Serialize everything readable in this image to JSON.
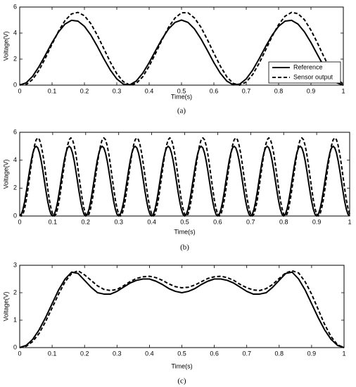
{
  "chart_data": [
    {
      "type": "line",
      "caption": "(a)",
      "xlabel": "Time(s)",
      "ylabel": "Voltage(V)",
      "legend": "lower right",
      "xlim": [
        0,
        1
      ],
      "ylim": [
        0,
        6
      ],
      "xticks": [
        0,
        0.1,
        0.2,
        0.3,
        0.4,
        0.5,
        0.6,
        0.7,
        0.8,
        0.9,
        1
      ],
      "yticks": [
        0,
        2,
        4,
        6
      ],
      "x": [
        0,
        0.02,
        0.04,
        0.06,
        0.08,
        0.1,
        0.12,
        0.14,
        0.16,
        0.18,
        0.2,
        0.22,
        0.24,
        0.26,
        0.28,
        0.3,
        0.32,
        0.34,
        0.36,
        0.38,
        0.4,
        0.42,
        0.44,
        0.46,
        0.48,
        0.5,
        0.52,
        0.54,
        0.56,
        0.58,
        0.6,
        0.62,
        0.64,
        0.66,
        0.68,
        0.7,
        0.72,
        0.74,
        0.76,
        0.78,
        0.8,
        0.82,
        0.84,
        0.86,
        0.88,
        0.9,
        0.92,
        0.94,
        0.96,
        0.98,
        1
      ],
      "series": [
        {
          "name": "Reference",
          "color": "#000000",
          "linestyle": "solid",
          "values": [
            0,
            0.18,
            0.68,
            1.44,
            2.34,
            3.27,
            4.09,
            4.69,
            4.98,
            4.92,
            4.52,
            3.84,
            2.97,
            2.03,
            1.16,
            0.48,
            0.08,
            0.02,
            0.31,
            0.91,
            1.73,
            2.66,
            3.56,
            4.32,
            4.82,
            5,
            4.82,
            4.32,
            3.56,
            2.66,
            1.73,
            0.91,
            0.31,
            0.02,
            0.08,
            0.48,
            1.16,
            2.03,
            2.97,
            3.84,
            4.52,
            4.92,
            4.98,
            4.69,
            4.09,
            3.27,
            2.34,
            1.44,
            0.68,
            0.18,
            0
          ]
        },
        {
          "name": "Sensor output",
          "color": "#000000",
          "linestyle": "dashed",
          "values": [
            0.04,
            0.04,
            0.44,
            1.15,
            2.11,
            3.15,
            4.14,
            4.96,
            5.47,
            5.59,
            5.33,
            4.72,
            3.83,
            2.8,
            1.77,
            0.88,
            0.27,
            0.01,
            0.13,
            0.64,
            1.46,
            2.45,
            3.49,
            4.45,
            5.16,
            5.56,
            5.56,
            5.16,
            4.45,
            3.49,
            2.45,
            1.46,
            0.64,
            0.13,
            0,
            0.24,
            0.82,
            1.69,
            2.71,
            3.75,
            4.65,
            5.3,
            5.59,
            5.49,
            5.02,
            4.22,
            3.24,
            2.18,
            1.22,
            0.48,
            0.07
          ]
        }
      ]
    },
    {
      "type": "line",
      "caption": "(b)",
      "xlabel": "Time(s)",
      "ylabel": "Voltage(V)",
      "xlim": [
        0,
        1
      ],
      "ylim": [
        0,
        6
      ],
      "xticks": [
        0,
        0.1,
        0.2,
        0.3,
        0.4,
        0.5,
        0.6,
        0.7,
        0.8,
        0.9,
        1
      ],
      "yticks": [
        0,
        2,
        4,
        6
      ],
      "x": [
        0,
        0.005,
        0.01,
        0.015,
        0.02,
        0.025,
        0.03,
        0.035,
        0.04,
        0.045,
        0.05,
        0.055,
        0.06,
        0.065,
        0.07,
        0.075,
        0.08,
        0.085,
        0.09,
        0.095,
        0.1,
        0.105,
        0.11,
        0.115,
        0.12,
        0.125,
        0.13,
        0.135,
        0.14,
        0.145,
        0.15,
        0.155,
        0.16,
        0.165,
        0.17,
        0.175,
        0.18,
        0.185,
        0.19,
        0.195,
        0.2,
        0.205,
        0.21,
        0.215,
        0.22,
        0.225,
        0.23,
        0.235,
        0.24,
        0.245,
        0.25,
        0.255,
        0.26,
        0.265,
        0.27,
        0.275,
        0.28,
        0.285,
        0.29,
        0.295,
        0.3,
        0.305,
        0.31,
        0.315,
        0.32,
        0.325,
        0.33,
        0.335,
        0.34,
        0.345,
        0.35,
        0.355,
        0.36,
        0.365,
        0.37,
        0.375,
        0.38,
        0.385,
        0.39,
        0.395,
        0.4,
        0.405,
        0.41,
        0.415,
        0.42,
        0.425,
        0.43,
        0.435,
        0.44,
        0.445,
        0.45,
        0.455,
        0.46,
        0.465,
        0.47,
        0.475,
        0.48,
        0.485,
        0.49,
        0.495,
        0.5,
        0.505,
        0.51,
        0.515,
        0.52,
        0.525,
        0.53,
        0.535,
        0.54,
        0.545,
        0.55,
        0.555,
        0.56,
        0.565,
        0.57,
        0.575,
        0.58,
        0.585,
        0.59,
        0.595,
        0.6,
        0.605,
        0.61,
        0.615,
        0.62,
        0.625,
        0.63,
        0.635,
        0.64,
        0.645,
        0.65,
        0.655,
        0.66,
        0.665,
        0.67,
        0.675,
        0.68,
        0.685,
        0.69,
        0.695,
        0.7,
        0.705,
        0.71,
        0.715,
        0.72,
        0.725,
        0.73,
        0.735,
        0.74,
        0.745,
        0.75,
        0.755,
        0.76,
        0.765,
        0.77,
        0.775,
        0.78,
        0.785,
        0.79,
        0.795,
        0.8,
        0.805,
        0.81,
        0.815,
        0.82,
        0.825,
        0.83,
        0.835,
        0.84,
        0.845,
        0.85,
        0.855,
        0.86,
        0.865,
        0.87,
        0.875,
        0.88,
        0.885,
        0.89,
        0.895,
        0.9,
        0.905,
        0.91,
        0.915,
        0.92,
        0.925,
        0.93,
        0.935,
        0.94,
        0.945,
        0.95,
        0.955,
        0.96,
        0.965,
        0.97,
        0.975,
        0.98,
        0.985,
        0.99,
        0.995,
        1
      ],
      "series": [
        {
          "color": "#000000",
          "linestyle": "solid",
          "values": [
            0,
            0.12,
            0.48,
            1.03,
            1.73,
            2.5,
            3.27,
            3.97,
            4.52,
            4.88,
            5,
            4.88,
            4.52,
            3.97,
            3.27,
            2.5,
            1.73,
            1.03,
            0.48,
            0.12,
            0,
            0.12,
            0.48,
            1.03,
            1.73,
            2.5,
            3.27,
            3.97,
            4.52,
            4.88,
            5,
            4.88,
            4.52,
            3.97,
            3.27,
            2.5,
            1.73,
            1.03,
            0.48,
            0.12,
            0,
            0.12,
            0.48,
            1.03,
            1.73,
            2.5,
            3.27,
            3.97,
            4.52,
            4.88,
            5,
            4.88,
            4.52,
            3.97,
            3.27,
            2.5,
            1.73,
            1.03,
            0.48,
            0.12,
            0,
            0.12,
            0.48,
            1.03,
            1.73,
            2.5,
            3.27,
            3.97,
            4.52,
            4.88,
            5,
            4.88,
            4.52,
            3.97,
            3.27,
            2.5,
            1.73,
            1.03,
            0.48,
            0.12,
            0,
            0.12,
            0.48,
            1.03,
            1.73,
            2.5,
            3.27,
            3.97,
            4.52,
            4.88,
            5,
            4.88,
            4.52,
            3.97,
            3.27,
            2.5,
            1.73,
            1.03,
            0.48,
            0.12,
            0,
            0.12,
            0.48,
            1.03,
            1.73,
            2.5,
            3.27,
            3.97,
            4.52,
            4.88,
            5,
            4.88,
            4.52,
            3.97,
            3.27,
            2.5,
            1.73,
            1.03,
            0.48,
            0.12,
            0,
            0.12,
            0.48,
            1.03,
            1.73,
            2.5,
            3.27,
            3.97,
            4.52,
            4.88,
            5,
            4.88,
            4.52,
            3.97,
            3.27,
            2.5,
            1.73,
            1.03,
            0.48,
            0.12,
            0,
            0.12,
            0.48,
            1.03,
            1.73,
            2.5,
            3.27,
            3.97,
            4.52,
            4.88,
            5,
            4.88,
            4.52,
            3.97,
            3.27,
            2.5,
            1.73,
            1.03,
            0.48,
            0.12,
            0,
            0.12,
            0.48,
            1.03,
            1.73,
            2.5,
            3.27,
            3.97,
            4.52,
            4.88,
            5,
            4.88,
            4.52,
            3.97,
            3.27,
            2.5,
            1.73,
            1.03,
            0.48,
            0.12,
            0,
            0.12,
            0.48,
            1.03,
            1.73,
            2.5,
            3.27,
            3.97,
            4.52,
            4.88,
            5,
            4.88,
            4.52,
            3.97,
            3.27,
            2.5,
            1.73,
            1.03,
            0.48,
            0.12,
            0
          ]
        },
        {
          "color": "#000000",
          "linestyle": "dashed",
          "values": [
            0.13,
            0,
            0.13,
            0.54,
            1.15,
            1.94,
            2.8,
            3.66,
            4.45,
            5.06,
            5.47,
            5.6,
            5.47,
            5.06,
            4.45,
            3.66,
            2.8,
            1.94,
            1.15,
            0.54,
            0.13,
            0,
            0.13,
            0.54,
            1.15,
            1.94,
            2.8,
            3.66,
            4.45,
            5.06,
            5.47,
            5.6,
            5.47,
            5.06,
            4.45,
            3.66,
            2.8,
            1.94,
            1.15,
            0.54,
            0.13,
            0,
            0.13,
            0.54,
            1.15,
            1.94,
            2.8,
            3.66,
            4.45,
            5.06,
            5.47,
            5.6,
            5.47,
            5.06,
            4.45,
            3.66,
            2.8,
            1.94,
            1.15,
            0.54,
            0.13,
            0,
            0.13,
            0.54,
            1.15,
            1.94,
            2.8,
            3.66,
            4.45,
            5.06,
            5.47,
            5.6,
            5.47,
            5.06,
            4.45,
            3.66,
            2.8,
            1.94,
            1.15,
            0.54,
            0.13,
            0,
            0.13,
            0.54,
            1.15,
            1.94,
            2.8,
            3.66,
            4.45,
            5.06,
            5.47,
            5.6,
            5.47,
            5.06,
            4.45,
            3.66,
            2.8,
            1.94,
            1.15,
            0.54,
            0.13,
            0,
            0.13,
            0.54,
            1.15,
            1.94,
            2.8,
            3.66,
            4.45,
            5.06,
            5.47,
            5.6,
            5.47,
            5.06,
            4.45,
            3.66,
            2.8,
            1.94,
            1.15,
            0.54,
            0.13,
            0,
            0.13,
            0.54,
            1.15,
            1.94,
            2.8,
            3.66,
            4.45,
            5.06,
            5.47,
            5.6,
            5.47,
            5.06,
            4.45,
            3.66,
            2.8,
            1.94,
            1.15,
            0.54,
            0.13,
            0,
            0.13,
            0.54,
            1.15,
            1.94,
            2.8,
            3.66,
            4.45,
            5.06,
            5.47,
            5.6,
            5.47,
            5.06,
            4.45,
            3.66,
            2.8,
            1.94,
            1.15,
            0.54,
            0.13,
            0,
            0.13,
            0.54,
            1.15,
            1.94,
            2.8,
            3.66,
            4.45,
            5.06,
            5.47,
            5.6,
            5.47,
            5.06,
            4.45,
            3.66,
            2.8,
            1.94,
            1.15,
            0.54,
            0.13,
            0,
            0.13,
            0.54,
            1.15,
            1.94,
            2.8,
            3.66,
            4.45,
            5.06,
            5.47,
            5.6,
            5.47,
            5.06,
            4.45,
            3.66,
            2.8,
            1.94,
            1.15,
            0.54,
            0.13
          ]
        }
      ]
    },
    {
      "type": "line",
      "caption": "(c)",
      "xlabel": "Time(s)",
      "ylabel": "Voltage(V)",
      "xlim": [
        0,
        1
      ],
      "ylim": [
        0,
        3
      ],
      "xticks": [
        0,
        0.1,
        0.2,
        0.3,
        0.4,
        0.5,
        0.6,
        0.7,
        0.8,
        0.9,
        1
      ],
      "yticks": [
        0,
        1,
        2,
        3
      ],
      "x": [
        0,
        0.02,
        0.04,
        0.06,
        0.08,
        0.1,
        0.12,
        0.14,
        0.16,
        0.18,
        0.2,
        0.22,
        0.24,
        0.26,
        0.28,
        0.3,
        0.32,
        0.34,
        0.36,
        0.38,
        0.4,
        0.42,
        0.44,
        0.46,
        0.48,
        0.5,
        0.52,
        0.54,
        0.56,
        0.58,
        0.6,
        0.62,
        0.64,
        0.66,
        0.68,
        0.7,
        0.72,
        0.74,
        0.76,
        0.78,
        0.8,
        0.82,
        0.84,
        0.86,
        0.88,
        0.9,
        0.92,
        0.94,
        0.96,
        0.98,
        1
      ],
      "series": [
        {
          "color": "#000000",
          "linestyle": "solid",
          "values": [
            0,
            0.08,
            0.3,
            0.65,
            1.1,
            1.6,
            2.1,
            2.5,
            2.75,
            2.7,
            2.45,
            2.2,
            2.0,
            1.95,
            1.95,
            2.05,
            2.2,
            2.35,
            2.45,
            2.5,
            2.5,
            2.42,
            2.3,
            2.15,
            2.05,
            2.0,
            2.05,
            2.15,
            2.3,
            2.42,
            2.5,
            2.5,
            2.45,
            2.35,
            2.2,
            2.05,
            1.95,
            1.95,
            2.0,
            2.2,
            2.45,
            2.7,
            2.75,
            2.5,
            2.1,
            1.6,
            1.1,
            0.65,
            0.3,
            0.08,
            0
          ]
        },
        {
          "color": "#000000",
          "linestyle": "dashed",
          "values": [
            0,
            0.05,
            0.22,
            0.52,
            0.95,
            1.45,
            1.95,
            2.4,
            2.7,
            2.8,
            2.65,
            2.45,
            2.25,
            2.12,
            2.08,
            2.12,
            2.25,
            2.4,
            2.52,
            2.58,
            2.6,
            2.55,
            2.45,
            2.32,
            2.22,
            2.18,
            2.2,
            2.28,
            2.4,
            2.52,
            2.58,
            2.6,
            2.55,
            2.45,
            2.3,
            2.18,
            2.1,
            2.08,
            2.15,
            2.3,
            2.52,
            2.72,
            2.8,
            2.72,
            2.4,
            1.95,
            1.4,
            0.85,
            0.4,
            0.1,
            0
          ]
        }
      ]
    }
  ]
}
